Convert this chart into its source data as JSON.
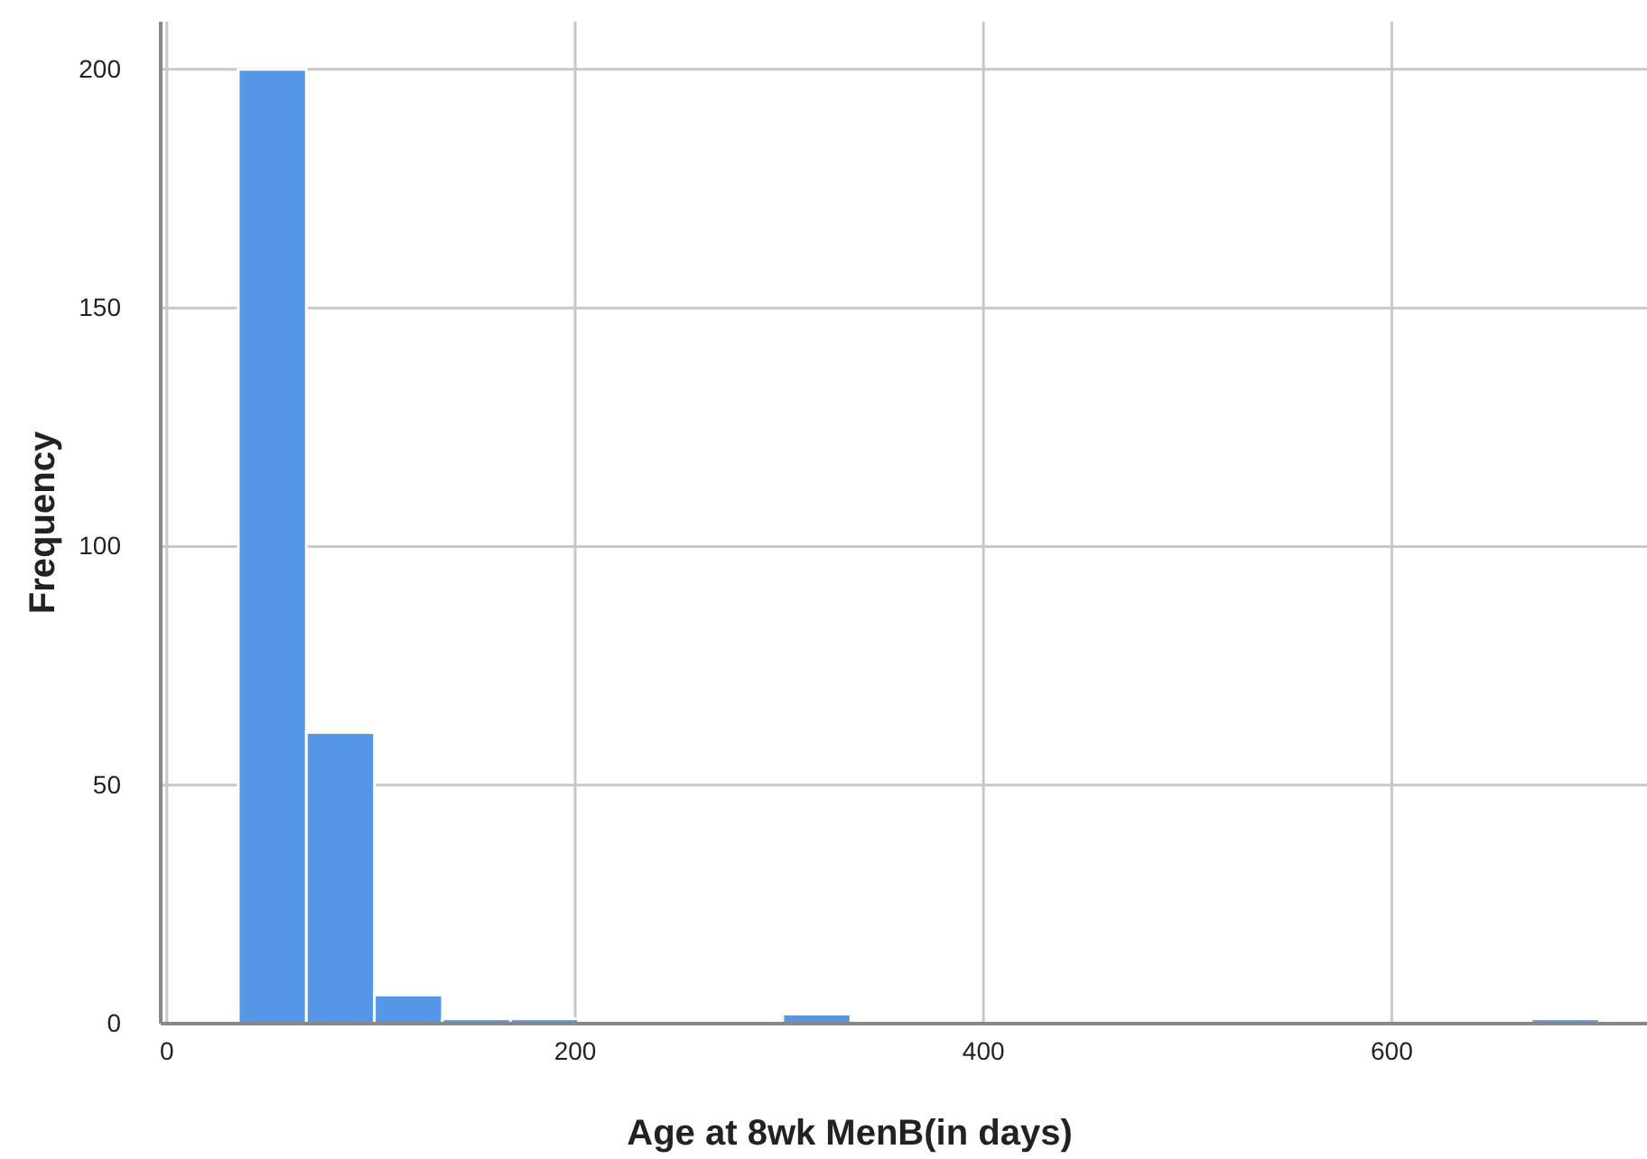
{
  "chart_data": {
    "type": "histogram",
    "xlabel": "Age at 8wk MenB(in days)",
    "ylabel": "Frequency",
    "bins": [
      35,
      68.33,
      101.67,
      135,
      168.33,
      201.67,
      235,
      268.33,
      301.67,
      335,
      368.33,
      401.67,
      435,
      468.33,
      501.67,
      535,
      568.33,
      601.67,
      635,
      668.33,
      701.67
    ],
    "values": [
      200,
      61,
      6,
      1,
      1,
      0,
      0,
      0,
      2,
      0,
      0,
      0,
      0,
      0,
      0,
      0,
      0,
      0,
      0,
      1
    ],
    "color": "#5596e6",
    "xlim": [
      -3,
      725
    ],
    "xticks": [
      0,
      200,
      400,
      600
    ],
    "ylim": [
      0,
      210
    ],
    "yticks": [
      0,
      50,
      100,
      150,
      200
    ],
    "grid": true
  }
}
